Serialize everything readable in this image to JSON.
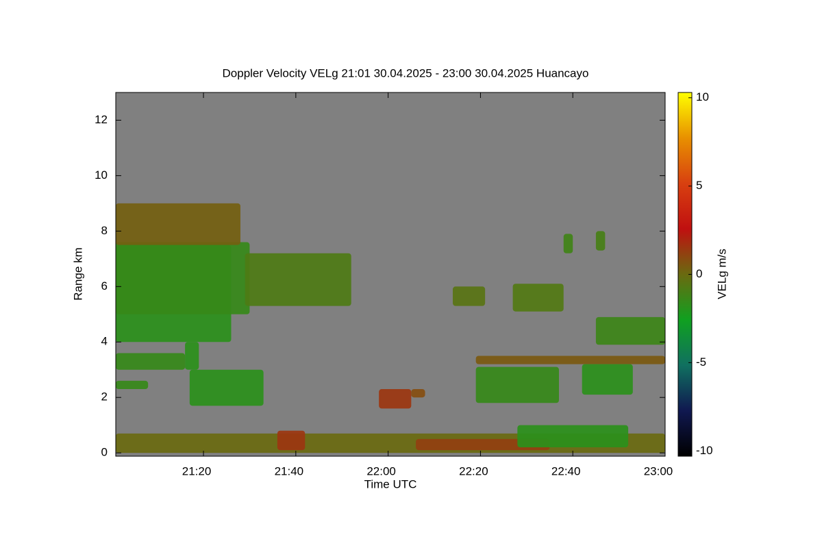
{
  "chart_data": {
    "type": "time-height",
    "title": "Doppler Velocity VELg   21:01 30.04.2025 - 23:00 30.04.2025 Huancayo",
    "x_label": "Time UTC",
    "y_label": "Range km",
    "colorbar_label": "VELg m/s",
    "background": "#808080",
    "xlim": [
      1,
      120
    ],
    "xticks": [
      {
        "value": 20,
        "label": "21:20"
      },
      {
        "value": 40,
        "label": "21:40"
      },
      {
        "value": 60,
        "label": "22:00"
      },
      {
        "value": 80,
        "label": "22:20"
      },
      {
        "value": 100,
        "label": "22:40"
      },
      {
        "value": 120,
        "label": "23:00"
      }
    ],
    "ylim": [
      -0.12,
      13
    ],
    "yticks": [
      0,
      2,
      4,
      6,
      8,
      10,
      12
    ],
    "zlim": [
      -10.3,
      10.3
    ],
    "zticks": [
      10,
      5,
      0,
      -5,
      -10
    ],
    "colormap": [
      "#000000",
      "#101850",
      "#107060",
      "#10a020",
      "#6a6a10",
      "#c01010",
      "#d84010",
      "#e89000",
      "#ffff00"
    ],
    "regions": [
      {
        "t0": 1,
        "t1": 26,
        "r0": 4.0,
        "r1": 7.5,
        "v": -1.8
      },
      {
        "t0": 1,
        "t1": 30,
        "r0": 5.0,
        "r1": 7.6,
        "v": -1.5
      },
      {
        "t0": 1,
        "t1": 28,
        "r0": 7.5,
        "r1": 9.0,
        "v": 0.3
      },
      {
        "t0": 16,
        "t1": 19,
        "r0": 3.0,
        "r1": 4.0,
        "v": -1.8
      },
      {
        "t0": 29,
        "t1": 52,
        "r0": 5.3,
        "r1": 7.2,
        "v": -0.8
      },
      {
        "t0": 1,
        "t1": 16,
        "r0": 3.0,
        "r1": 3.6,
        "v": -1.5
      },
      {
        "t0": 1,
        "t1": 8,
        "r0": 2.3,
        "r1": 2.6,
        "v": -1.5
      },
      {
        "t0": 17,
        "t1": 33,
        "r0": 1.7,
        "r1": 3.0,
        "v": -1.8
      },
      {
        "t0": 1,
        "t1": 120,
        "r0": 0.0,
        "r1": 0.7,
        "v": 0.0
      },
      {
        "t0": 36,
        "t1": 42,
        "r0": 0.1,
        "r1": 0.8,
        "v": 1.5
      },
      {
        "t0": 66,
        "t1": 95,
        "r0": 0.1,
        "r1": 0.5,
        "v": 1.2
      },
      {
        "t0": 88,
        "t1": 112,
        "r0": 0.2,
        "r1": 1.0,
        "v": -1.8
      },
      {
        "t0": 58,
        "t1": 65,
        "r0": 1.6,
        "r1": 2.3,
        "v": 1.5
      },
      {
        "t0": 65,
        "t1": 68,
        "r0": 2.0,
        "r1": 2.3,
        "v": 0.8
      },
      {
        "t0": 74,
        "t1": 81,
        "r0": 5.3,
        "r1": 6.0,
        "v": -0.5
      },
      {
        "t0": 87,
        "t1": 98,
        "r0": 5.1,
        "r1": 6.1,
        "v": -0.7
      },
      {
        "t0": 98,
        "t1": 100,
        "r0": 7.2,
        "r1": 7.9,
        "v": -1.2
      },
      {
        "t0": 105,
        "t1": 107,
        "r0": 7.3,
        "r1": 8.0,
        "v": -1.0
      },
      {
        "t0": 79,
        "t1": 120,
        "r0": 3.2,
        "r1": 3.5,
        "v": 0.5
      },
      {
        "t0": 79,
        "t1": 97,
        "r0": 1.8,
        "r1": 3.1,
        "v": -1.5
      },
      {
        "t0": 102,
        "t1": 113,
        "r0": 2.1,
        "r1": 3.2,
        "v": -1.8
      },
      {
        "t0": 105,
        "t1": 120,
        "r0": 3.9,
        "r1": 4.9,
        "v": -1.3
      }
    ]
  }
}
